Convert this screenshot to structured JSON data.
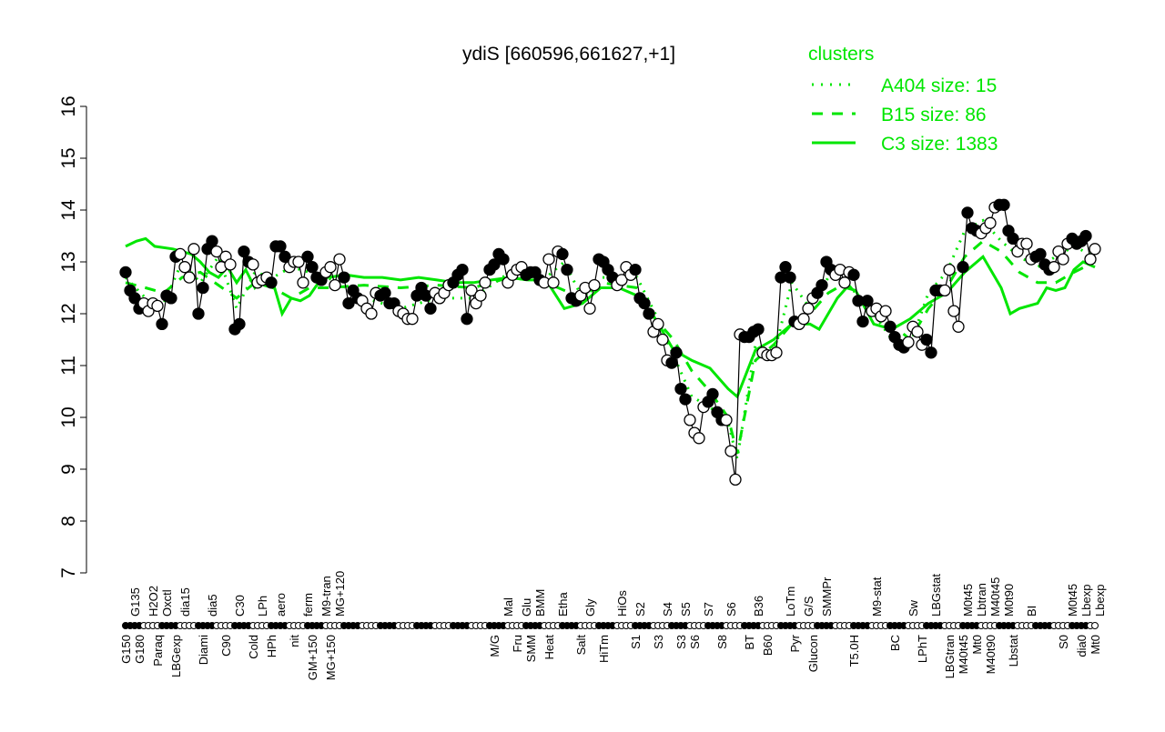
{
  "chart_data": {
    "type": "line",
    "title": "ydiS [660596,661627,+1]",
    "xlabel": "",
    "ylabel": "",
    "ylim": [
      7,
      16
    ],
    "yticks": [
      7,
      8,
      9,
      10,
      11,
      12,
      13,
      14,
      15,
      16
    ],
    "grid": false,
    "legend": {
      "title": "clusters",
      "placement": "top-right",
      "entries": [
        {
          "label": "A404 size: 15",
          "style": "dotted"
        },
        {
          "label": "B15 size: 86",
          "style": "dashed"
        },
        {
          "label": "C3 size: 1383",
          "style": "solid"
        }
      ]
    },
    "colors": {
      "clusters": "#00e600",
      "points": "#000000"
    },
    "values": [
      12.8,
      12.45,
      12.3,
      12.1,
      12.2,
      12.05,
      12.2,
      12.15,
      11.8,
      12.35,
      12.3,
      13.1,
      13.15,
      12.9,
      12.7,
      13.25,
      12.0,
      12.5,
      13.25,
      13.4,
      13.2,
      12.9,
      13.1,
      12.95,
      11.7,
      11.8,
      13.2,
      13.0,
      12.95,
      12.6,
      12.65,
      12.7,
      12.6,
      13.3,
      13.3,
      13.1,
      12.9,
      13.0,
      13.0,
      12.6,
      13.1,
      12.9,
      12.7,
      12.65,
      12.8,
      12.9,
      12.55,
      13.05,
      12.7,
      12.2,
      12.45,
      12.3,
      12.25,
      12.1,
      12.0,
      12.4,
      12.35,
      12.4,
      12.2,
      12.2,
      12.05,
      12.0,
      11.9,
      11.9,
      12.35,
      12.5,
      12.35,
      12.1,
      12.4,
      12.3,
      12.4,
      12.55,
      12.6,
      12.75,
      12.85,
      11.9,
      12.45,
      12.2,
      12.35,
      12.6,
      12.85,
      12.95,
      13.15,
      13.05,
      12.6,
      12.75,
      12.85,
      12.9,
      12.75,
      12.8,
      12.8,
      12.65,
      12.6,
      13.05,
      12.6,
      13.2,
      13.15,
      12.85,
      12.3,
      12.25,
      12.35,
      12.5,
      12.1,
      12.55,
      13.05,
      13.0,
      12.85,
      12.7,
      12.55,
      12.65,
      12.9,
      12.75,
      12.85,
      12.3,
      12.2,
      12.0,
      11.65,
      11.8,
      11.5,
      11.1,
      11.05,
      11.25,
      10.55,
      10.35,
      9.95,
      9.7,
      9.6,
      10.2,
      10.3,
      10.45,
      10.1,
      9.95,
      9.95,
      9.35,
      8.8,
      11.6,
      11.55,
      11.55,
      11.65,
      11.7,
      11.25,
      11.2,
      11.2,
      11.25,
      12.7,
      12.9,
      12.7,
      11.85,
      11.8,
      11.9,
      12.1,
      12.3,
      12.4,
      12.55,
      13.0,
      12.85,
      12.75,
      12.85,
      12.6,
      12.8,
      12.75,
      12.25,
      11.85,
      12.25,
      12.05,
      12.1,
      11.95,
      12.05,
      11.75,
      11.55,
      11.4,
      11.35,
      11.45,
      11.75,
      11.65,
      11.4,
      11.5,
      11.25,
      12.45,
      12.45,
      12.45,
      12.85,
      12.05,
      11.75,
      12.9,
      13.95,
      13.65,
      13.6,
      13.55,
      13.65,
      13.75,
      14.05,
      14.1,
      14.1,
      13.6,
      13.45,
      13.2,
      13.35,
      13.35,
      13.05,
      13.1,
      13.15,
      12.95,
      12.85,
      12.9,
      13.2,
      13.05,
      13.35,
      13.45,
      13.35,
      13.4,
      13.5,
      13.05,
      13.25
    ],
    "tick_labels": [
      {
        "index": 0,
        "label": "G150"
      },
      {
        "index": 2,
        "label": "G135"
      },
      {
        "index": 3,
        "label": "G180"
      },
      {
        "index": 6,
        "label": "H2O2"
      },
      {
        "index": 7,
        "label": "Paraq"
      },
      {
        "index": 9,
        "label": "Oxctl"
      },
      {
        "index": 11,
        "label": "LBGexp"
      },
      {
        "index": 13,
        "label": "dia15"
      },
      {
        "index": 17,
        "label": "Diami"
      },
      {
        "index": 19,
        "label": "dia5"
      },
      {
        "index": 22,
        "label": "C90"
      },
      {
        "index": 25,
        "label": "C30"
      },
      {
        "index": 28,
        "label": "Cold"
      },
      {
        "index": 30,
        "label": "LPh"
      },
      {
        "index": 32,
        "label": "HPh"
      },
      {
        "index": 34,
        "label": "aero"
      },
      {
        "index": 37,
        "label": "nit"
      },
      {
        "index": 40,
        "label": "ferm"
      },
      {
        "index": 41,
        "label": "GM+150"
      },
      {
        "index": 44,
        "label": "M9-tran"
      },
      {
        "index": 45,
        "label": "MG+150"
      },
      {
        "index": 47,
        "label": "MG+120"
      },
      {
        "index": 81,
        "label": "M/G"
      },
      {
        "index": 84,
        "label": "Mal"
      },
      {
        "index": 86,
        "label": "Fru"
      },
      {
        "index": 88,
        "label": "Glu"
      },
      {
        "index": 89,
        "label": "SMM"
      },
      {
        "index": 91,
        "label": "BMM"
      },
      {
        "index": 93,
        "label": "Heat"
      },
      {
        "index": 96,
        "label": "Etha"
      },
      {
        "index": 100,
        "label": "Salt"
      },
      {
        "index": 102,
        "label": "Gly"
      },
      {
        "index": 105,
        "label": "HiTm"
      },
      {
        "index": 109,
        "label": "HiOs"
      },
      {
        "index": 112,
        "label": "S1"
      },
      {
        "index": 113,
        "label": "S2"
      },
      {
        "index": 117,
        "label": "S3"
      },
      {
        "index": 119,
        "label": "S4"
      },
      {
        "index": 122,
        "label": "S3"
      },
      {
        "index": 123,
        "label": "S5"
      },
      {
        "index": 125,
        "label": "S6"
      },
      {
        "index": 128,
        "label": "S7"
      },
      {
        "index": 131,
        "label": "S8"
      },
      {
        "index": 133,
        "label": "S6"
      },
      {
        "index": 137,
        "label": "BT"
      },
      {
        "index": 139,
        "label": "B36"
      },
      {
        "index": 141,
        "label": "B60"
      },
      {
        "index": 146,
        "label": "LoTm"
      },
      {
        "index": 147,
        "label": "Pyr"
      },
      {
        "index": 150,
        "label": "G/S"
      },
      {
        "index": 151,
        "label": "Glucon"
      },
      {
        "index": 154,
        "label": "SMMPr"
      },
      {
        "index": 160,
        "label": "T5.0H"
      },
      {
        "index": 165,
        "label": "M9-stat"
      },
      {
        "index": 169,
        "label": "BC"
      },
      {
        "index": 173,
        "label": "Sw"
      },
      {
        "index": 175,
        "label": "LPhT"
      },
      {
        "index": 178,
        "label": "LBGstat"
      },
      {
        "index": 181,
        "label": "LBGtran"
      },
      {
        "index": 185,
        "label": "M0t45"
      },
      {
        "index": 184,
        "label": "M40t45"
      },
      {
        "index": 188,
        "label": "Lbtran"
      },
      {
        "index": 187,
        "label": "Mt0"
      },
      {
        "index": 191,
        "label": "M40t45"
      },
      {
        "index": 190,
        "label": "M40t90"
      },
      {
        "index": 194,
        "label": "M0t90"
      },
      {
        "index": 195,
        "label": "Lbstat"
      },
      {
        "index": 199,
        "label": "BI"
      },
      {
        "index": 206,
        "label": "S0"
      },
      {
        "index": 208,
        "label": "M0t45"
      },
      {
        "index": 210,
        "label": "dia0"
      },
      {
        "index": 211,
        "label": "Lbexp"
      },
      {
        "index": 212,
        "label": "Mt0"
      },
      {
        "index": 213,
        "label": "Lbexp"
      }
    ],
    "series": [
      {
        "name": "C3 size: 1383",
        "style": "solid",
        "points": [
          [
            0,
            13.3
          ],
          [
            2.4,
            13.4
          ],
          [
            4.4,
            13.45
          ],
          [
            6.4,
            13.3
          ],
          [
            10.4,
            13.25
          ],
          [
            14.4,
            13.15
          ],
          [
            16.4,
            13.0
          ],
          [
            18.4,
            12.8
          ],
          [
            20.4,
            12.7
          ],
          [
            22.4,
            12.9
          ],
          [
            24.4,
            12.6
          ],
          [
            26.4,
            12.85
          ],
          [
            28.4,
            12.5
          ],
          [
            30.4,
            12.7
          ],
          [
            32.4,
            12.6
          ],
          [
            34.4,
            12.0
          ],
          [
            36.4,
            12.3
          ],
          [
            38.4,
            12.25
          ],
          [
            40.4,
            12.35
          ],
          [
            42.4,
            12.6
          ],
          [
            44.4,
            12.7
          ],
          [
            48.4,
            12.75
          ],
          [
            52.4,
            12.7
          ],
          [
            56.4,
            12.7
          ],
          [
            60.4,
            12.65
          ],
          [
            64.4,
            12.7
          ],
          [
            68.4,
            12.65
          ],
          [
            72.4,
            12.6
          ],
          [
            76.4,
            12.6
          ],
          [
            80.4,
            12.65
          ],
          [
            84.4,
            12.7
          ],
          [
            88.4,
            12.65
          ],
          [
            92.4,
            12.65
          ],
          [
            96.4,
            12.1
          ],
          [
            100.4,
            12.2
          ],
          [
            104.4,
            12.5
          ],
          [
            108.4,
            12.5
          ],
          [
            112.4,
            12.35
          ],
          [
            116.4,
            11.9
          ],
          [
            120.4,
            11.3
          ],
          [
            124.4,
            11.1
          ],
          [
            128.4,
            10.95
          ],
          [
            132.4,
            10.55
          ],
          [
            134.4,
            10.4
          ],
          [
            138.4,
            11.3
          ],
          [
            142.4,
            11.5
          ],
          [
            146.4,
            11.8
          ],
          [
            150.4,
            11.8
          ],
          [
            152.4,
            11.7
          ],
          [
            156.4,
            12.3
          ],
          [
            158.4,
            12.5
          ],
          [
            160.4,
            12.45
          ],
          [
            164.4,
            11.8
          ],
          [
            168.4,
            11.7
          ],
          [
            172.4,
            11.9
          ],
          [
            176.4,
            12.2
          ],
          [
            180.4,
            12.4
          ],
          [
            184.4,
            12.8
          ],
          [
            188.4,
            13.1
          ],
          [
            190.4,
            12.8
          ],
          [
            192.4,
            12.5
          ],
          [
            194.4,
            12.0
          ],
          [
            196.4,
            12.1
          ],
          [
            200.4,
            12.2
          ],
          [
            202.4,
            12.5
          ],
          [
            204.4,
            12.45
          ],
          [
            206.4,
            12.5
          ],
          [
            208.4,
            12.85
          ],
          [
            210.4,
            13.0
          ],
          [
            213,
            12.9
          ]
        ]
      },
      {
        "name": "B15 size: 86",
        "style": "dashed",
        "points": [
          [
            0,
            12.6
          ],
          [
            4.4,
            12.5
          ],
          [
            8.4,
            12.4
          ],
          [
            12.4,
            12.7
          ],
          [
            16.4,
            12.8
          ],
          [
            20.4,
            12.55
          ],
          [
            24.4,
            12.3
          ],
          [
            28.4,
            12.6
          ],
          [
            32.4,
            12.5
          ],
          [
            36.4,
            12.3
          ],
          [
            40.4,
            12.5
          ],
          [
            44.4,
            12.5
          ],
          [
            52.4,
            12.55
          ],
          [
            60.4,
            12.5
          ],
          [
            68.4,
            12.55
          ],
          [
            76.4,
            12.5
          ],
          [
            84.4,
            12.7
          ],
          [
            92.4,
            12.6
          ],
          [
            96.4,
            12.45
          ],
          [
            100.4,
            12.3
          ],
          [
            104.4,
            12.6
          ],
          [
            112.4,
            12.5
          ],
          [
            116.4,
            11.9
          ],
          [
            120.4,
            11.5
          ],
          [
            124.4,
            10.9
          ],
          [
            128.4,
            10.5
          ],
          [
            132.4,
            10.0
          ],
          [
            134.4,
            9.3
          ],
          [
            138.4,
            11.1
          ],
          [
            142.4,
            11.4
          ],
          [
            146.4,
            11.8
          ],
          [
            150.4,
            12.0
          ],
          [
            154.4,
            12.4
          ],
          [
            158.4,
            12.6
          ],
          [
            164.4,
            12.0
          ],
          [
            168.4,
            11.8
          ],
          [
            172.4,
            11.5
          ],
          [
            176.4,
            12.1
          ],
          [
            180.4,
            12.5
          ],
          [
            184.4,
            13.1
          ],
          [
            188.4,
            13.4
          ],
          [
            192.4,
            13.2
          ],
          [
            196.4,
            12.8
          ],
          [
            200.4,
            12.6
          ],
          [
            204.4,
            12.6
          ],
          [
            208.4,
            12.8
          ],
          [
            213,
            13.0
          ]
        ]
      },
      {
        "name": "A404 size: 15",
        "style": "dotted",
        "points": [
          [
            0,
            12.7
          ],
          [
            4.4,
            12.3
          ],
          [
            8.4,
            12.2
          ],
          [
            12.4,
            13.0
          ],
          [
            16.4,
            12.6
          ],
          [
            20.4,
            13.1
          ],
          [
            24.4,
            12.1
          ],
          [
            28.4,
            12.8
          ],
          [
            32.4,
            12.7
          ],
          [
            36.4,
            12.9
          ],
          [
            40.4,
            12.8
          ],
          [
            44.4,
            12.7
          ],
          [
            52.4,
            12.3
          ],
          [
            60.4,
            12.1
          ],
          [
            68.4,
            12.3
          ],
          [
            76.4,
            12.3
          ],
          [
            84.4,
            12.8
          ],
          [
            92.4,
            12.7
          ],
          [
            96.4,
            13.0
          ],
          [
            100.4,
            12.3
          ],
          [
            104.4,
            12.7
          ],
          [
            112.4,
            12.7
          ],
          [
            116.4,
            12.0
          ],
          [
            120.4,
            11.2
          ],
          [
            124.4,
            10.4
          ],
          [
            128.4,
            10.2
          ],
          [
            132.4,
            9.9
          ],
          [
            134.4,
            9.2
          ],
          [
            138.4,
            11.4
          ],
          [
            142.4,
            11.2
          ],
          [
            146.4,
            12.6
          ],
          [
            150.4,
            12.1
          ],
          [
            154.4,
            12.7
          ],
          [
            158.4,
            12.6
          ],
          [
            164.4,
            12.0
          ],
          [
            168.4,
            11.5
          ],
          [
            172.4,
            11.4
          ],
          [
            176.4,
            12.4
          ],
          [
            180.4,
            12.8
          ],
          [
            184.4,
            13.6
          ],
          [
            188.4,
            13.8
          ],
          [
            192.4,
            13.4
          ],
          [
            196.4,
            13.1
          ],
          [
            200.4,
            12.9
          ],
          [
            204.4,
            13.1
          ],
          [
            208.4,
            13.3
          ],
          [
            213,
            13.1
          ]
        ]
      }
    ]
  }
}
